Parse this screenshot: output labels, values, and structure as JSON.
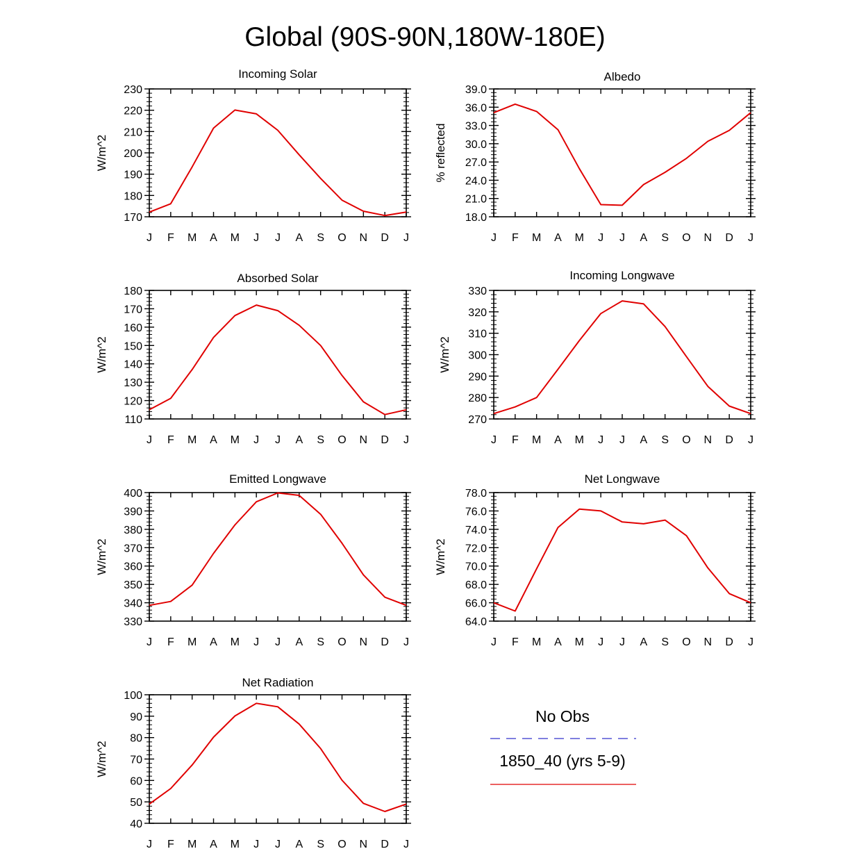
{
  "figure": {
    "title": "Global (90S-90N,180W-180E)"
  },
  "legend": {
    "entries": [
      {
        "label": "No Obs",
        "color": "#3333cc",
        "style": "dashed"
      },
      {
        "label": "1850_40 (yrs 5-9)",
        "color": "#e00000",
        "style": "solid"
      }
    ]
  },
  "chart_data": [
    {
      "type": "line",
      "title": "Incoming Solar",
      "ylabel": "W/m^2",
      "xlabel": "",
      "categories": [
        "J",
        "F",
        "M",
        "A",
        "M",
        "J",
        "J",
        "A",
        "S",
        "O",
        "N",
        "D",
        "J"
      ],
      "ylim": [
        170,
        230
      ],
      "yticks": [
        "170",
        "180",
        "190",
        "200",
        "210",
        "220",
        "230"
      ],
      "series": [
        {
          "name": "1850_40 (yrs 5-9)",
          "color": "#e00000",
          "values": [
            172.2,
            176.1,
            193.4,
            211.6,
            220.1,
            218.3,
            210.6,
            199.1,
            188.0,
            177.8,
            172.6,
            170.6,
            172.2
          ]
        }
      ]
    },
    {
      "type": "line",
      "title": "Albedo",
      "ylabel": "% reflected",
      "xlabel": "",
      "categories": [
        "J",
        "F",
        "M",
        "A",
        "M",
        "J",
        "J",
        "A",
        "S",
        "O",
        "N",
        "D",
        "J"
      ],
      "ylim": [
        18,
        39
      ],
      "yticks": [
        "18.0",
        "21.0",
        "24.0",
        "27.0",
        "30.0",
        "33.0",
        "36.0",
        "39.0"
      ],
      "series": [
        {
          "name": "1850_40 (yrs 5-9)",
          "color": "#e00000",
          "values": [
            35.1,
            36.5,
            35.3,
            32.3,
            25.9,
            20.0,
            19.9,
            23.3,
            25.3,
            27.6,
            30.4,
            32.2,
            35.1
          ]
        }
      ]
    },
    {
      "type": "line",
      "title": "Absorbed Solar",
      "ylabel": "W/m^2",
      "xlabel": "",
      "categories": [
        "J",
        "F",
        "M",
        "A",
        "M",
        "J",
        "J",
        "A",
        "S",
        "O",
        "N",
        "D",
        "J"
      ],
      "ylim": [
        110,
        180
      ],
      "yticks": [
        "110",
        "120",
        "130",
        "140",
        "150",
        "160",
        "170",
        "180"
      ],
      "series": [
        {
          "name": "1850_40 (yrs 5-9)",
          "color": "#e00000",
          "values": [
            115.0,
            121.2,
            136.9,
            154.4,
            166.3,
            172.0,
            169.0,
            161.0,
            150.0,
            133.7,
            119.3,
            112.4,
            115.0
          ]
        }
      ]
    },
    {
      "type": "line",
      "title": "Incoming Longwave",
      "ylabel": "W/m^2",
      "xlabel": "",
      "categories": [
        "J",
        "F",
        "M",
        "A",
        "M",
        "J",
        "J",
        "A",
        "S",
        "O",
        "N",
        "D",
        "J"
      ],
      "ylim": [
        270,
        330
      ],
      "yticks": [
        "270",
        "280",
        "290",
        "300",
        "310",
        "320",
        "330"
      ],
      "series": [
        {
          "name": "1850_40 (yrs 5-9)",
          "color": "#e00000",
          "values": [
            272.5,
            275.6,
            280.0,
            293.2,
            306.6,
            319.2,
            325.1,
            323.7,
            313.1,
            299.1,
            285.2,
            276.0,
            272.5
          ]
        }
      ]
    },
    {
      "type": "line",
      "title": "Emitted Longwave",
      "ylabel": "W/m^2",
      "xlabel": "",
      "categories": [
        "J",
        "F",
        "M",
        "A",
        "M",
        "J",
        "J",
        "A",
        "S",
        "O",
        "N",
        "D",
        "J"
      ],
      "ylim": [
        330,
        400
      ],
      "yticks": [
        "330",
        "340",
        "350",
        "360",
        "370",
        "380",
        "390",
        "400"
      ],
      "series": [
        {
          "name": "1850_40 (yrs 5-9)",
          "color": "#e00000",
          "values": [
            338.6,
            340.7,
            349.6,
            366.9,
            382.4,
            395.0,
            399.8,
            398.5,
            388.2,
            372.4,
            355.2,
            343.0,
            338.6
          ]
        }
      ]
    },
    {
      "type": "line",
      "title": "Net Longwave",
      "ylabel": "W/m^2",
      "xlabel": "",
      "categories": [
        "J",
        "F",
        "M",
        "A",
        "M",
        "J",
        "J",
        "A",
        "S",
        "O",
        "N",
        "D",
        "J"
      ],
      "ylim": [
        64,
        78
      ],
      "yticks": [
        "64.0",
        "66.0",
        "68.0",
        "70.0",
        "72.0",
        "74.0",
        "76.0",
        "78.0"
      ],
      "series": [
        {
          "name": "1850_40 (yrs 5-9)",
          "color": "#e00000",
          "values": [
            66.0,
            65.1,
            69.7,
            74.2,
            76.2,
            76.0,
            74.8,
            74.6,
            75.0,
            73.3,
            69.8,
            67.0,
            66.0
          ]
        }
      ]
    },
    {
      "type": "line",
      "title": "Net Radiation",
      "ylabel": "W/m^2",
      "xlabel": "",
      "categories": [
        "J",
        "F",
        "M",
        "A",
        "M",
        "J",
        "J",
        "A",
        "S",
        "O",
        "N",
        "D",
        "J"
      ],
      "ylim": [
        40,
        100
      ],
      "yticks": [
        "40",
        "50",
        "60",
        "70",
        "80",
        "90",
        "100"
      ],
      "series": [
        {
          "name": "1850_40 (yrs 5-9)",
          "color": "#e00000",
          "values": [
            49.0,
            56.2,
            67.2,
            80.2,
            90.1,
            96.0,
            94.4,
            86.3,
            74.9,
            60.1,
            49.3,
            45.5,
            49.0
          ]
        }
      ]
    }
  ]
}
